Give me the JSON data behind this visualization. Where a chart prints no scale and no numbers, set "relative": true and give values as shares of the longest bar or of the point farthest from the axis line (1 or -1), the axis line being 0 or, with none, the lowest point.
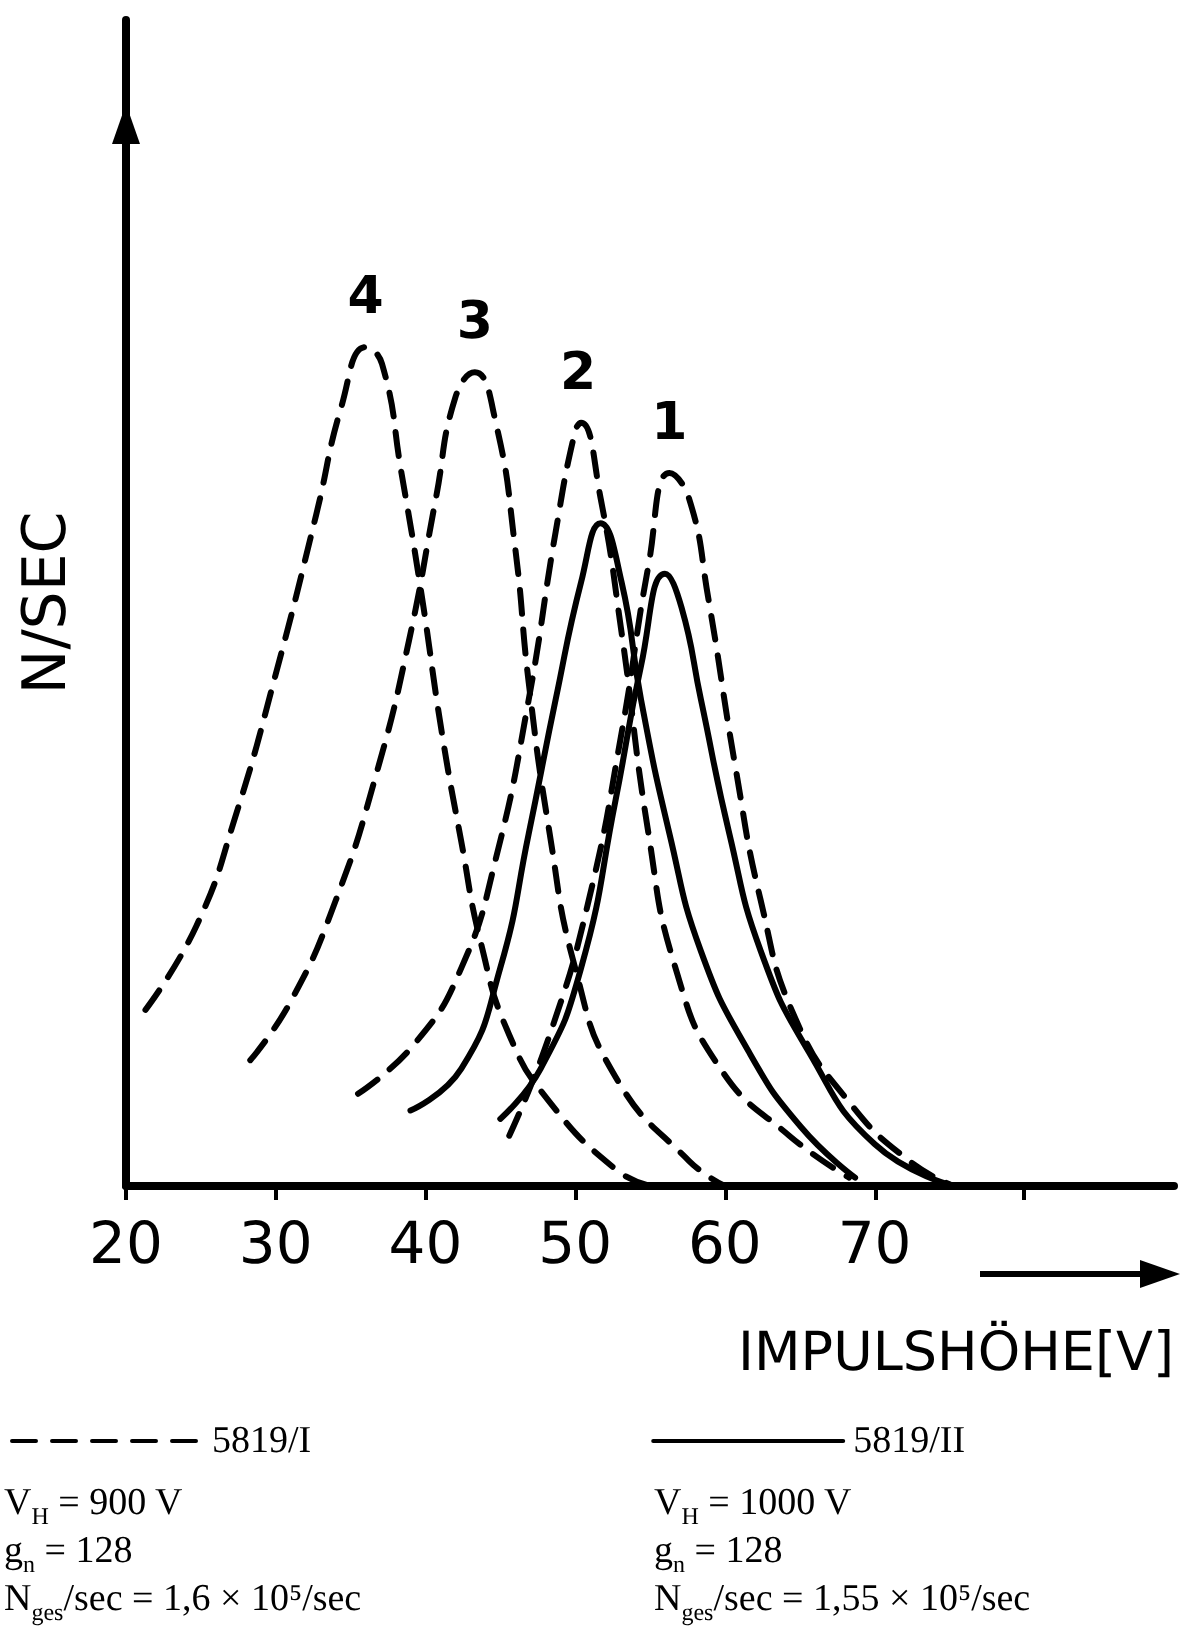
{
  "chart_data": {
    "type": "line",
    "relative": true,
    "xlabel": "IMPULSHÖHE[V]",
    "ylabel": "N/SEC",
    "xlim": [
      20,
      90
    ],
    "xticks": [
      20,
      30,
      40,
      50,
      60,
      70,
      {
        "value": 80,
        "label": null
      }
    ],
    "marker": "none",
    "grid": false,
    "legend": "bottom",
    "annotations": [
      {
        "text": "4",
        "x": 36,
        "y": 1.0
      },
      {
        "text": "3",
        "x": 43.3,
        "y": 0.97
      },
      {
        "text": "2",
        "x": 50.2,
        "y": 0.91
      },
      {
        "text": "1",
        "x": 56.3,
        "y": 0.85
      },
      "V$_{H}$ = 900 V",
      "g$_{n}$ = 128",
      "N$_{ges}$/sec = 1,6 × 10⁵/sec",
      "V$_{H}$ = 1000 V",
      "g$_{n}$ = 128",
      "N$_{ges}$/sec = 1,55 × 10⁵/sec"
    ],
    "series": [
      {
        "name": "5819/I",
        "color": "#000000",
        "line_style": "dashed",
        "x": [
          21.3,
          24.7,
          27.3,
          30,
          32.7,
          34.4,
          36,
          37.1,
          38.4,
          39.7,
          41.1,
          42.4,
          43.7,
          45.6,
          48.3,
          52.7,
          55
        ],
        "values": [
          0.21,
          0.31,
          0.44,
          0.61,
          0.8,
          0.93,
          1.0,
          0.98,
          0.85,
          0.71,
          0.54,
          0.41,
          0.29,
          0.18,
          0.1,
          0.02,
          0
        ]
      },
      {
        "color": "#000000",
        "line_style": "dashed",
        "x": [
          28.3,
          31,
          34,
          36.7,
          38.9,
          40.7,
          42,
          43.3,
          44.7,
          46,
          46.9,
          48.3,
          50,
          52.7,
          57.6,
          60
        ],
        "values": [
          0.15,
          0.22,
          0.34,
          0.49,
          0.65,
          0.82,
          0.94,
          0.97,
          0.91,
          0.76,
          0.6,
          0.42,
          0.26,
          0.13,
          0.03,
          0
        ]
      },
      {
        "color": "#000000",
        "line_style": "dashed",
        "x": [
          35.5,
          39.3,
          42.4,
          44.7,
          46.9,
          48.7,
          50,
          50.4,
          51.7,
          53.1,
          54.9,
          56.7,
          59.7,
          64.3,
          68.3
        ],
        "values": [
          0.11,
          0.17,
          0.26,
          0.39,
          0.58,
          0.78,
          0.9,
          0.91,
          0.82,
          0.66,
          0.42,
          0.26,
          0.14,
          0.06,
          0.01
        ]
      },
      {
        "color": "#000000",
        "line_style": "dashed",
        "x": [
          45.6,
          48.3,
          50.9,
          53.1,
          54.9,
          56.3,
          57.6,
          58.9,
          60.7,
          62.4,
          64.7,
          68.3,
          72.3,
          75.3
        ],
        "values": [
          0.06,
          0.18,
          0.34,
          0.54,
          0.74,
          0.85,
          0.82,
          0.7,
          0.5,
          0.34,
          0.2,
          0.1,
          0.03,
          0
        ]
      },
      {
        "name": "5819/II",
        "color": "#000000",
        "line_style": "solid",
        "x": [
          39,
          42.4,
          45,
          46.9,
          48.7,
          50.4,
          51.7,
          53.1,
          54.4,
          56.3,
          58.4,
          61.6,
          65.1,
          68.7
        ],
        "values": [
          0.09,
          0.14,
          0.26,
          0.42,
          0.58,
          0.72,
          0.79,
          0.72,
          0.58,
          0.42,
          0.28,
          0.16,
          0.07,
          0.01
        ]
      },
      {
        "color": "#000000",
        "line_style": "solid",
        "x": [
          45,
          47.7,
          50.4,
          52.7,
          54.4,
          56,
          57.1,
          58.4,
          60.3,
          62.4,
          65.6,
          70,
          75.3
        ],
        "values": [
          0.08,
          0.14,
          0.26,
          0.46,
          0.62,
          0.73,
          0.69,
          0.58,
          0.42,
          0.28,
          0.16,
          0.05,
          0
        ]
      }
    ]
  }
}
